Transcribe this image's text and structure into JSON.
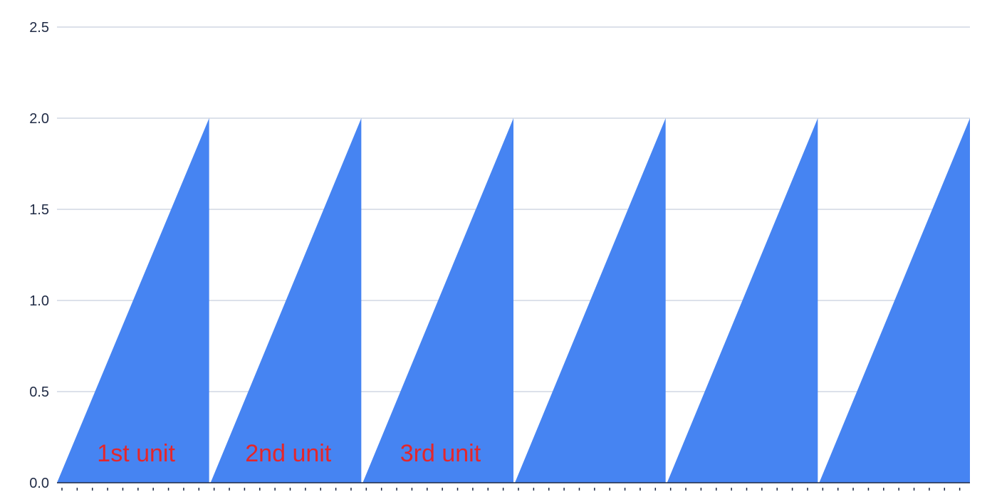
{
  "chart_data": {
    "type": "area",
    "title": "",
    "xlabel": "",
    "ylabel": "",
    "ylim": [
      0,
      2.5
    ],
    "y_ticks": [
      "0.0",
      "0.5",
      "1.0",
      "1.5",
      "2.0",
      "2.5"
    ],
    "y_tick_values": [
      0,
      0.5,
      1.0,
      1.5,
      2.0,
      2.5
    ],
    "grid": true,
    "legend": "none",
    "series": [
      {
        "color": "#4684f2",
        "pattern": "sawtooth",
        "cycles": 6,
        "cycle_start_value": 0,
        "cycle_peak_value": 2.0
      }
    ],
    "x_tick_count": 60,
    "annotations": [
      {
        "cycle": 1,
        "text": "1st unit",
        "color": "#e5262a"
      },
      {
        "cycle": 2,
        "text": "2nd unit",
        "color": "#e5262a"
      },
      {
        "cycle": 3,
        "text": "3rd unit",
        "color": "#e5262a"
      }
    ]
  }
}
